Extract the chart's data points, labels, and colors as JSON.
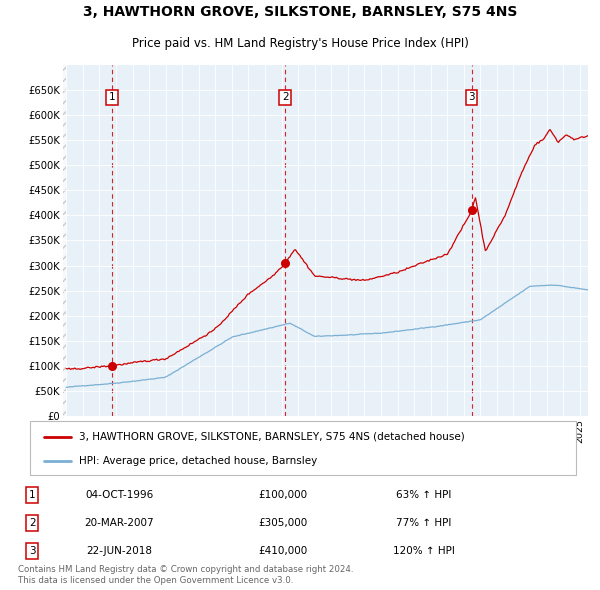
{
  "title": "3, HAWTHORN GROVE, SILKSTONE, BARNSLEY, S75 4NS",
  "subtitle": "Price paid vs. HM Land Registry's House Price Index (HPI)",
  "property_label": "3, HAWTHORN GROVE, SILKSTONE, BARNSLEY, S75 4NS (detached house)",
  "hpi_label": "HPI: Average price, detached house, Barnsley",
  "sale_year_nums": [
    1996.75,
    2007.21,
    2018.47
  ],
  "sale_prices": [
    100000,
    305000,
    410000
  ],
  "sale_labels": [
    "1",
    "2",
    "3"
  ],
  "sale_annotations": [
    {
      "label": "1",
      "date": "04-OCT-1996",
      "price": "£100,000",
      "pct": "63% ↑ HPI"
    },
    {
      "label": "2",
      "date": "20-MAR-2007",
      "price": "£305,000",
      "pct": "77% ↑ HPI"
    },
    {
      "label": "3",
      "date": "22-JUN-2018",
      "price": "£410,000",
      "pct": "120% ↑ HPI"
    }
  ],
  "footer": "Contains HM Land Registry data © Crown copyright and database right 2024.\nThis data is licensed under the Open Government Licence v3.0.",
  "property_color": "#cc0000",
  "hpi_color": "#7ab0d4",
  "plot_bg_color": "#e8f0f8",
  "grid_color": "#ffffff",
  "ylim": [
    0,
    700000
  ],
  "yticks": [
    0,
    50000,
    100000,
    150000,
    200000,
    250000,
    300000,
    350000,
    400000,
    450000,
    500000,
    550000,
    600000,
    650000
  ],
  "x_start_year": 1994,
  "x_end_year": 2025
}
